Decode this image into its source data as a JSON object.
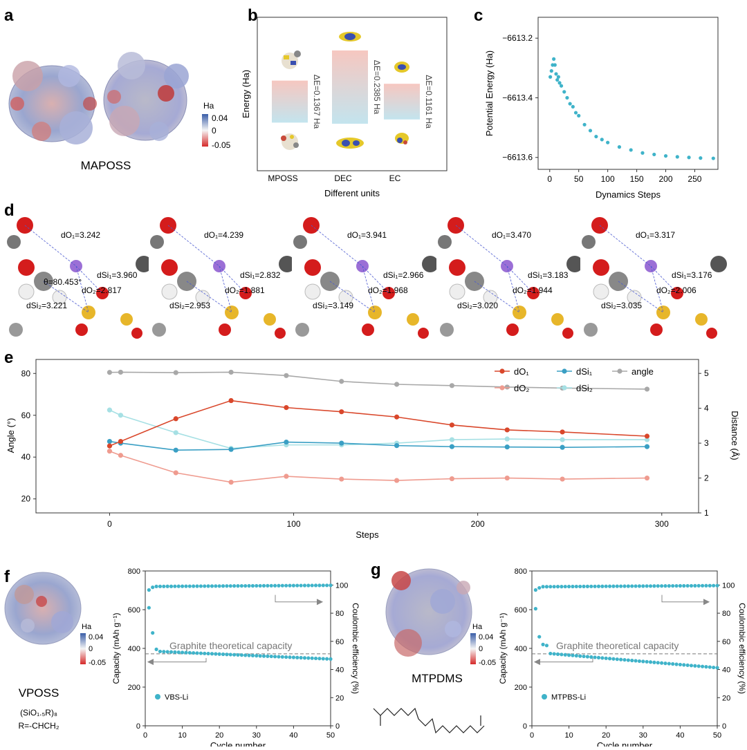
{
  "panels": {
    "a": "a",
    "b": "b",
    "c": "c",
    "d": "d",
    "e": "e",
    "f": "f",
    "g": "g"
  },
  "panel_a": {
    "caption": "MAPOSS",
    "colorbar": {
      "unit": "Ha",
      "max": "0.04",
      "mid": "0",
      "min": "-0.05",
      "colors": [
        "#3a5ea8",
        "#f5f5f5",
        "#d62a2a"
      ]
    }
  },
  "chart_data": [
    {
      "id": "b",
      "type": "bar",
      "categories": [
        "MPOSS",
        "DEC",
        "EC"
      ],
      "gaps": [
        0.1367,
        0.2385,
        0.1161
      ],
      "gap_labels": [
        "ΔE=0.1367 Ha",
        "ΔE=0.2385 Ha",
        "ΔE=0.1161 Ha"
      ],
      "xlabel": "Different units",
      "ylabel": "Energy (Ha)"
    },
    {
      "id": "c",
      "type": "scatter",
      "xlabel": "Dynamics Steps",
      "ylabel": "Potential Energy (Ha)",
      "xlim": [
        -20,
        290
      ],
      "ylim": [
        -6613.64,
        -6613.13
      ],
      "xticks": [
        "0",
        "50",
        "100",
        "150",
        "200",
        "250"
      ],
      "yticks": [
        "−6613.2",
        "−6613.4",
        "−6613.6"
      ],
      "color": "#3fb3c9",
      "points_x": [
        1,
        3,
        5,
        7,
        9,
        11,
        13,
        15,
        17,
        20,
        25,
        30,
        35,
        40,
        45,
        50,
        60,
        70,
        80,
        90,
        100,
        120,
        140,
        160,
        180,
        200,
        220,
        240,
        260,
        282
      ],
      "points_y": [
        -6613.33,
        -6613.31,
        -6613.29,
        -6613.27,
        -6613.29,
        -6613.32,
        -6613.34,
        -6613.33,
        -6613.35,
        -6613.36,
        -6613.38,
        -6613.4,
        -6613.42,
        -6613.43,
        -6613.45,
        -6613.46,
        -6613.49,
        -6613.51,
        -6613.53,
        -6613.54,
        -6613.55,
        -6613.565,
        -6613.575,
        -6613.585,
        -6613.59,
        -6613.595,
        -6613.598,
        -6613.6,
        -6613.602,
        -6613.603
      ]
    },
    {
      "id": "e",
      "type": "line",
      "xlabel": "Steps",
      "ylabel_left": "Angle (°)",
      "ylabel_right": "Distance (Å)",
      "xlim": [
        -40,
        320
      ],
      "ylim_left": [
        13.3,
        86.7
      ],
      "ylim_right": [
        1,
        5.4
      ],
      "xticks": [
        "0",
        "100",
        "200",
        "300"
      ],
      "yticks_left": [
        "20",
        "40",
        "60",
        "80"
      ],
      "yticks_right": [
        "1",
        "2",
        "3",
        "4",
        "5"
      ],
      "x": [
        0,
        6,
        36,
        66,
        96,
        126,
        156,
        186,
        216,
        246,
        292
      ],
      "series": [
        {
          "name": "dO₁",
          "axis": "right",
          "color": "#d9472b",
          "values": [
            2.92,
            3.05,
            3.7,
            4.22,
            4.02,
            3.9,
            3.75,
            3.52,
            3.38,
            3.32,
            3.2
          ]
        },
        {
          "name": "dSi₁",
          "axis": "right",
          "color": "#3a9fc4",
          "values": [
            3.05,
            3.0,
            2.8,
            2.82,
            3.03,
            3.0,
            2.93,
            2.9,
            2.89,
            2.88,
            2.9
          ]
        },
        {
          "name": "angle",
          "axis": "left",
          "color": "#a8a8a8",
          "values": [
            80.5,
            80.6,
            80.4,
            80.6,
            79.0,
            76.2,
            74.8,
            74.2,
            73.5,
            73.0,
            72.5
          ]
        },
        {
          "name": "dO₂",
          "axis": "right",
          "color": "#ef9b8f",
          "values": [
            2.77,
            2.65,
            2.15,
            1.88,
            2.05,
            1.97,
            1.93,
            1.98,
            2.0,
            1.97,
            2.0
          ]
        },
        {
          "name": "dSi₂",
          "axis": "right",
          "color": "#a6e0e4",
          "values": [
            3.95,
            3.8,
            3.3,
            2.85,
            2.95,
            2.95,
            3.0,
            3.1,
            3.12,
            3.1,
            3.1
          ]
        }
      ]
    },
    {
      "id": "f",
      "type": "scatter",
      "xlabel": "Cycle number",
      "ylabel_left": "Capacity (mAh g⁻¹)",
      "ylabel_right": "Coulombic efficiency (%)",
      "xlim": [
        0,
        50
      ],
      "ylim_left": [
        0,
        800
      ],
      "ylim_right": [
        0,
        110
      ],
      "xticks": [
        "0",
        "10",
        "20",
        "30",
        "40",
        "50"
      ],
      "yticks_left": [
        "0",
        "200",
        "400",
        "600",
        "800"
      ],
      "yticks_right": [
        "0",
        "20",
        "40",
        "60",
        "80",
        "100"
      ],
      "legend": "VBS-Li",
      "reference_label": "Graphite theoretical capacity",
      "reference_value": 372,
      "capacity": {
        "start": [
          610,
          480,
          395
        ],
        "from": 385,
        "to": 345
      },
      "ce": {
        "start": [
          96.5,
          98.4
        ],
        "from": 99.0,
        "to": 99.8
      }
    },
    {
      "id": "g",
      "type": "scatter",
      "xlabel": "Cycle number",
      "ylabel_left": "Capacity (mAh g⁻¹)",
      "ylabel_right": "Coulombic efficiency (%)",
      "xlim": [
        0,
        50
      ],
      "ylim_left": [
        0,
        800
      ],
      "ylim_right": [
        0,
        110
      ],
      "xticks": [
        "0",
        "10",
        "20",
        "30",
        "40",
        "50"
      ],
      "yticks_left": [
        "0",
        "200",
        "400",
        "600",
        "800"
      ],
      "yticks_right": [
        "0",
        "20",
        "40",
        "60",
        "80",
        "100"
      ],
      "legend": "MTPBS-Li",
      "reference_label": "Graphite theoretical capacity",
      "reference_value": 372,
      "capacity": {
        "start": [
          605,
          460,
          420,
          415
        ],
        "from": 375,
        "to": 300
      },
      "ce": {
        "start": [
          96.5,
          98.0
        ],
        "from": 98.8,
        "to": 99.6
      }
    }
  ],
  "panel_d": {
    "frames": [
      {
        "dO1": "dO₁=3.242",
        "dO2": "dO₂=2.817",
        "dSi1": "dSi₁=3.960",
        "dSi2": "dSi₂=3.221",
        "theta": "θ=80.453°"
      },
      {
        "dO1": "dO₁=4.239",
        "dO2": "dO₂=1.881",
        "dSi1": "dSi₁=2.832",
        "dSi2": "dSi₂=2.953"
      },
      {
        "dO1": "dO₁=3.941",
        "dO2": "dO₂=1.968",
        "dSi1": "dSi₁=2.966",
        "dSi2": "dSi₂=3.149"
      },
      {
        "dO1": "dO₁=3.470",
        "dO2": "dO₂=1.944",
        "dSi1": "dSi₁=3.183",
        "dSi2": "dSi₂=3.020"
      },
      {
        "dO1": "dO₁=3.317",
        "dO2": "dO₂=2.006",
        "dSi1": "dSi₁=3.176",
        "dSi2": "dSi₂=3.035"
      }
    ]
  },
  "panel_f": {
    "caption": "VPOSS",
    "formula": "(SiO₁.₅R)₈",
    "r_group": "R=-CHCH₂",
    "colorbar": {
      "unit": "Ha",
      "max": "0.04",
      "mid": "0",
      "min": "-0.05"
    }
  },
  "panel_g": {
    "caption": "MTPDMS",
    "colorbar": {
      "unit": "Ha",
      "max": "0.04",
      "mid": "0",
      "min": "-0.05"
    }
  }
}
